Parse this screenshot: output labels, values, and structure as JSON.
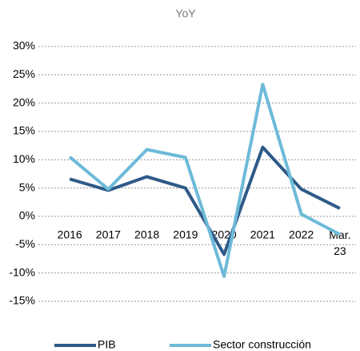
{
  "chart_data": {
    "type": "line",
    "title": "YoY",
    "categories": [
      "2016",
      "2017",
      "2018",
      "2019",
      "2020",
      "2021",
      "2022",
      "Mar. 23"
    ],
    "series": [
      {
        "name": "PIB",
        "color": "#2e5a88",
        "values": [
          6.6,
          4.6,
          7.0,
          5.0,
          -6.7,
          12.2,
          4.8,
          1.4
        ]
      },
      {
        "name": "Sector construcción",
        "color": "#6dbad8",
        "values": [
          10.5,
          4.8,
          11.8,
          10.4,
          -10.6,
          23.3,
          0.4,
          -3.2
        ]
      }
    ],
    "ylim": [
      -15,
      30
    ],
    "yticks": [
      {
        "value": -15,
        "label": "-15%"
      },
      {
        "value": -10,
        "label": "-10%"
      },
      {
        "value": -5,
        "label": "-5%"
      },
      {
        "value": 0,
        "label": "0%"
      },
      {
        "value": 5,
        "label": "5%"
      },
      {
        "value": 10,
        "label": "10%"
      },
      {
        "value": 15,
        "label": "15%"
      },
      {
        "value": 20,
        "label": "20%"
      },
      {
        "value": 25,
        "label": "25%"
      },
      {
        "value": 30,
        "label": "30%"
      }
    ],
    "grid": true,
    "legend": "bottom"
  }
}
